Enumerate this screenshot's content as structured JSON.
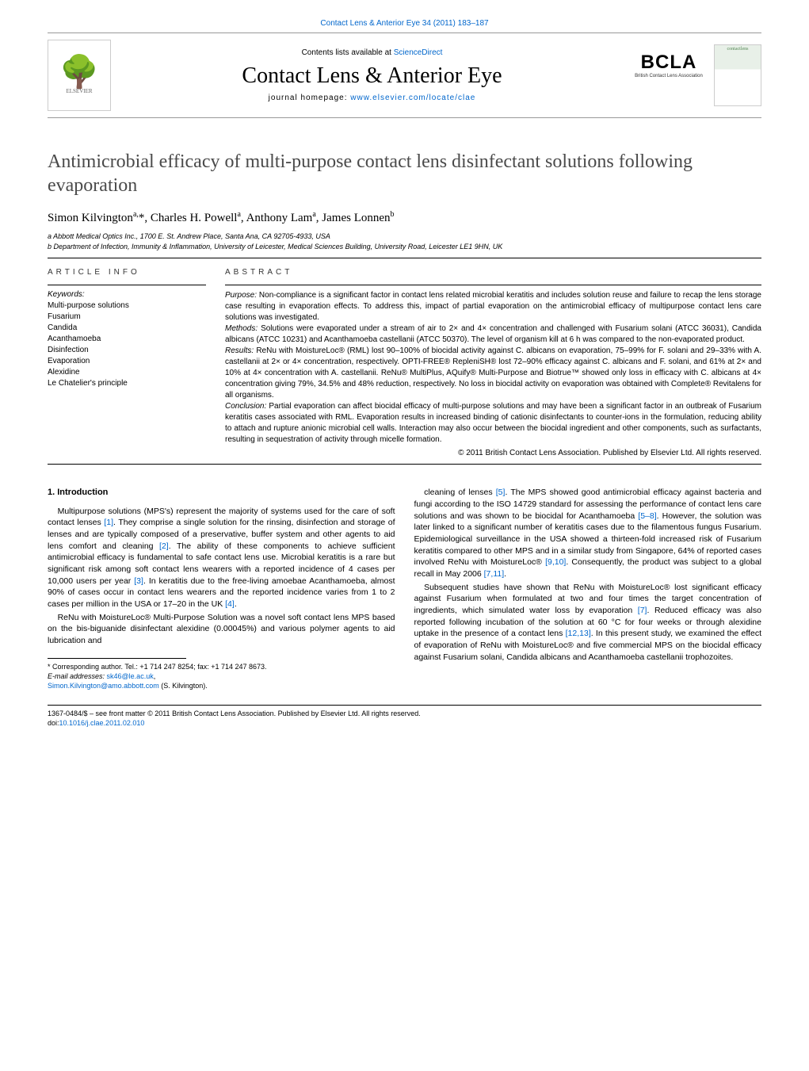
{
  "journal_header": "Contact Lens & Anterior Eye 34 (2011) 183–187",
  "masthead": {
    "contents_line_pre": "Contents lists available at ",
    "contents_line_link": "ScienceDirect",
    "journal_name": "Contact Lens & Anterior Eye",
    "homepage_pre": "journal homepage: ",
    "homepage_link": "www.elsevier.com/locate/clae",
    "elsevier_label": "ELSEVIER",
    "bcla_text": "BCLA",
    "bcla_sub": "British Contact Lens Association",
    "cover_text": "contactlens"
  },
  "title": "Antimicrobial efficacy of multi-purpose contact lens disinfectant solutions following evaporation",
  "authors_html": "Simon Kilvington<sup>a,</sup>*, Charles H. Powell<sup>a</sup>, Anthony Lam<sup>a</sup>, James Lonnen<sup>b</sup>",
  "affiliations": [
    "a Abbott Medical Optics Inc., 1700 E. St. Andrew Place, Santa Ana, CA 92705-4933, USA",
    "b Department of Infection, Immunity & Inflammation, University of Leicester, Medical Sciences Building, University Road, Leicester LE1 9HN, UK"
  ],
  "info_label": "article info",
  "abstract_label": "abstract",
  "keywords_label": "Keywords:",
  "keywords": [
    "Multi-purpose solutions",
    "Fusarium",
    "Candida",
    "Acanthamoeba",
    "Disinfection",
    "Evaporation",
    "Alexidine",
    "Le Chatelier's principle"
  ],
  "abstract": {
    "purpose": "Non-compliance is a significant factor in contact lens related microbial keratitis and includes solution reuse and failure to recap the lens storage case resulting in evaporation effects. To address this, impact of partial evaporation on the antimicrobial efficacy of multipurpose contact lens care solutions was investigated.",
    "methods": "Solutions were evaporated under a stream of air to 2× and 4× concentration and challenged with Fusarium solani (ATCC 36031), Candida albicans (ATCC 10231) and Acanthamoeba castellanii (ATCC 50370). The level of organism kill at 6 h was compared to the non-evaporated product.",
    "results": "ReNu with MoistureLoc® (RML) lost 90–100% of biocidal activity against C. albicans on evaporation, 75–99% for F. solani and 29–33% with A. castellanii at 2× or 4× concentration, respectively. OPTI-FREE® RepleniSH® lost 72–90% efficacy against C. albicans and F. solani, and 61% at 2× and 10% at 4× concentration with A. castellanii. ReNu® MultiPlus, AQuify® Multi-Purpose and Biotrue™ showed only loss in efficacy with C. albicans at 4× concentration giving 79%, 34.5% and 48% reduction, respectively. No loss in biocidal activity on evaporation was obtained with Complete® Revitalens for all organisms.",
    "conclusion": "Partial evaporation can affect biocidal efficacy of multi-purpose solutions and may have been a significant factor in an outbreak of Fusarium keratitis cases associated with RML. Evaporation results in increased binding of cationic disinfectants to counter-ions in the formulation, reducing ability to attach and rupture anionic microbial cell walls. Interaction may also occur between the biocidal ingredient and other components, such as surfactants, resulting in sequestration of activity through micelle formation."
  },
  "copyright": "© 2011 British Contact Lens Association. Published by Elsevier Ltd. All rights reserved.",
  "section_heading": "1. Introduction",
  "para1_a": "Multipurpose solutions (MPS's) represent the majority of systems used for the care of soft contact lenses ",
  "ref1": "[1]",
  "para1_b": ". They comprise a single solution for the rinsing, disinfection and storage of lenses and are typically composed of a preservative, buffer system and other agents to aid lens comfort and cleaning ",
  "ref2": "[2]",
  "para1_c": ". The ability of these components to achieve sufficient antimicrobial efficacy is fundamental to safe contact lens use. Microbial keratitis is a rare but significant risk among soft contact lens wearers with a reported incidence of 4 cases per 10,000 users per year ",
  "ref3": "[3]",
  "para1_d": ". In keratitis due to the free-living amoebae Acanthamoeba, almost 90% of cases occur in contact lens wearers and the reported incidence varies from 1 to 2 cases per million in the USA or 17–20 in the UK ",
  "ref4": "[4]",
  "para1_e": ".",
  "para2": "ReNu with MoistureLoc® Multi-Purpose Solution was a novel soft contact lens MPS based on the bis-biguanide disinfectant alexidine (0.00045%) and various polymer agents to aid lubrication and",
  "para3_a": "cleaning of lenses ",
  "ref5": "[5]",
  "para3_b": ". The MPS showed good antimicrobial efficacy against bacteria and fungi according to the ISO 14729 standard for assessing the performance of contact lens care solutions and was shown to be biocidal for Acanthamoeba ",
  "ref58": "[5–8]",
  "para3_c": ". However, the solution was later linked to a significant number of keratitis cases due to the filamentous fungus Fusarium. Epidemiological surveillance in the USA showed a thirteen-fold increased risk of Fusarium keratitis compared to other MPS and in a similar study from Singapore, 64% of reported cases involved ReNu with MoistureLoc® ",
  "ref910": "[9,10]",
  "para3_d": ". Consequently, the product was subject to a global recall in May 2006 ",
  "ref711": "[7,11]",
  "para3_e": ".",
  "para4_a": "Subsequent studies have shown that ReNu with MoistureLoc® lost significant efficacy against Fusarium when formulated at two and four times the target concentration of ingredients, which simulated water loss by evaporation ",
  "ref7": "[7]",
  "para4_b": ". Reduced efficacy was also reported following incubation of the solution at 60 °C for four weeks or through alexidine uptake in the presence of a contact lens ",
  "ref1213": "[12,13]",
  "para4_c": ". In this present study, we examined the effect of evaporation of ReNu with MoistureLoc® and five commercial MPS on the biocidal efficacy against Fusarium solani, Candida albicans and Acanthamoeba castellanii trophozoites.",
  "footnote_corr": "* Corresponding author. Tel.: +1 714 247 8254; fax: +1 714 247 8673.",
  "footnote_email_label": "E-mail addresses: ",
  "footnote_email1": "sk46@le.ac.uk",
  "footnote_email_sep": ",",
  "footnote_email2": "Simon.Kilvington@amo.abbott.com",
  "footnote_email_suffix": " (S. Kilvington).",
  "bottom_issn": "1367-0484/$ – see front matter © 2011 British Contact Lens Association. Published by Elsevier Ltd. All rights reserved.",
  "bottom_doi_pre": "doi:",
  "bottom_doi": "10.1016/j.clae.2011.02.010"
}
